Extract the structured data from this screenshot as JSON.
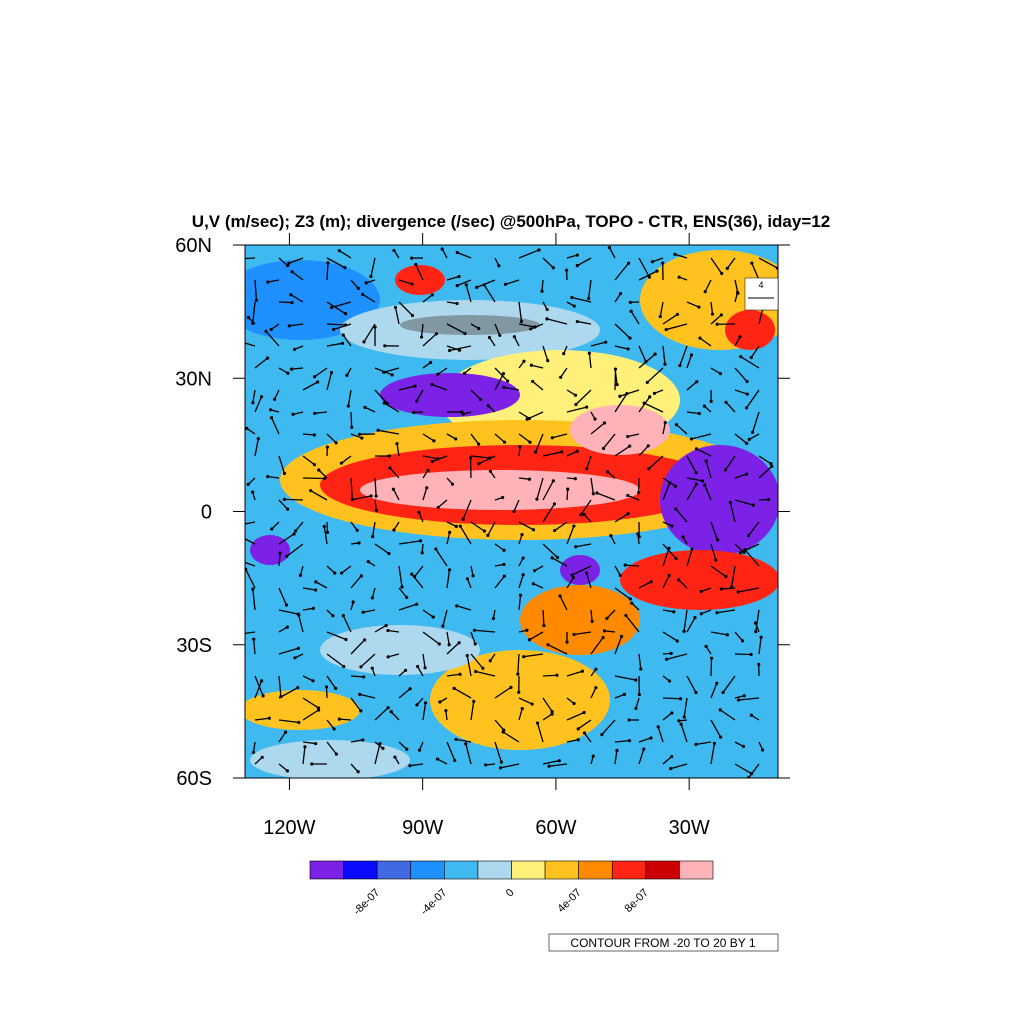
{
  "map": {
    "title": "U,V (m/sec); Z3 (m); divergence (/sec) @500hPa, TOPO - CTR, ENS(36), iday=12",
    "lonlim": [
      -130,
      -10
    ],
    "latlim": [
      -60,
      60
    ],
    "lon_ticks": [
      {
        "value": -120,
        "label": "120W"
      },
      {
        "value": -90,
        "label": "90W"
      },
      {
        "value": -60,
        "label": "60W"
      },
      {
        "value": -30,
        "label": "30W"
      }
    ],
    "lat_ticks": [
      {
        "value": 60,
        "label": "60N"
      },
      {
        "value": 30,
        "label": "30N"
      },
      {
        "value": 0,
        "label": "0"
      },
      {
        "value": -30,
        "label": "30S"
      },
      {
        "value": -60,
        "label": "60S"
      }
    ],
    "reference_vector": "4"
  },
  "colorbar": {
    "colors": [
      "#7b22e6",
      "#0a0aff",
      "#4169e1",
      "#1e90ff",
      "#3fbaf0",
      "#add8ee",
      "#fff07a",
      "#ffc21f",
      "#ff8a00",
      "#ff2414",
      "#cc0000",
      "#ffb3b8"
    ],
    "range": [
      -1.2e-06,
      1.2e-06
    ],
    "ticks": [
      {
        "value": -8e-07,
        "label": "-8e-07"
      },
      {
        "value": -4e-07,
        "label": "-4e-07"
      },
      {
        "value": 0,
        "label": "0"
      },
      {
        "value": 4e-07,
        "label": "4e-07"
      },
      {
        "value": 8e-07,
        "label": "8e-07"
      }
    ]
  },
  "contour_info": "CONTOUR FROM -20 TO 20 BY 1"
}
